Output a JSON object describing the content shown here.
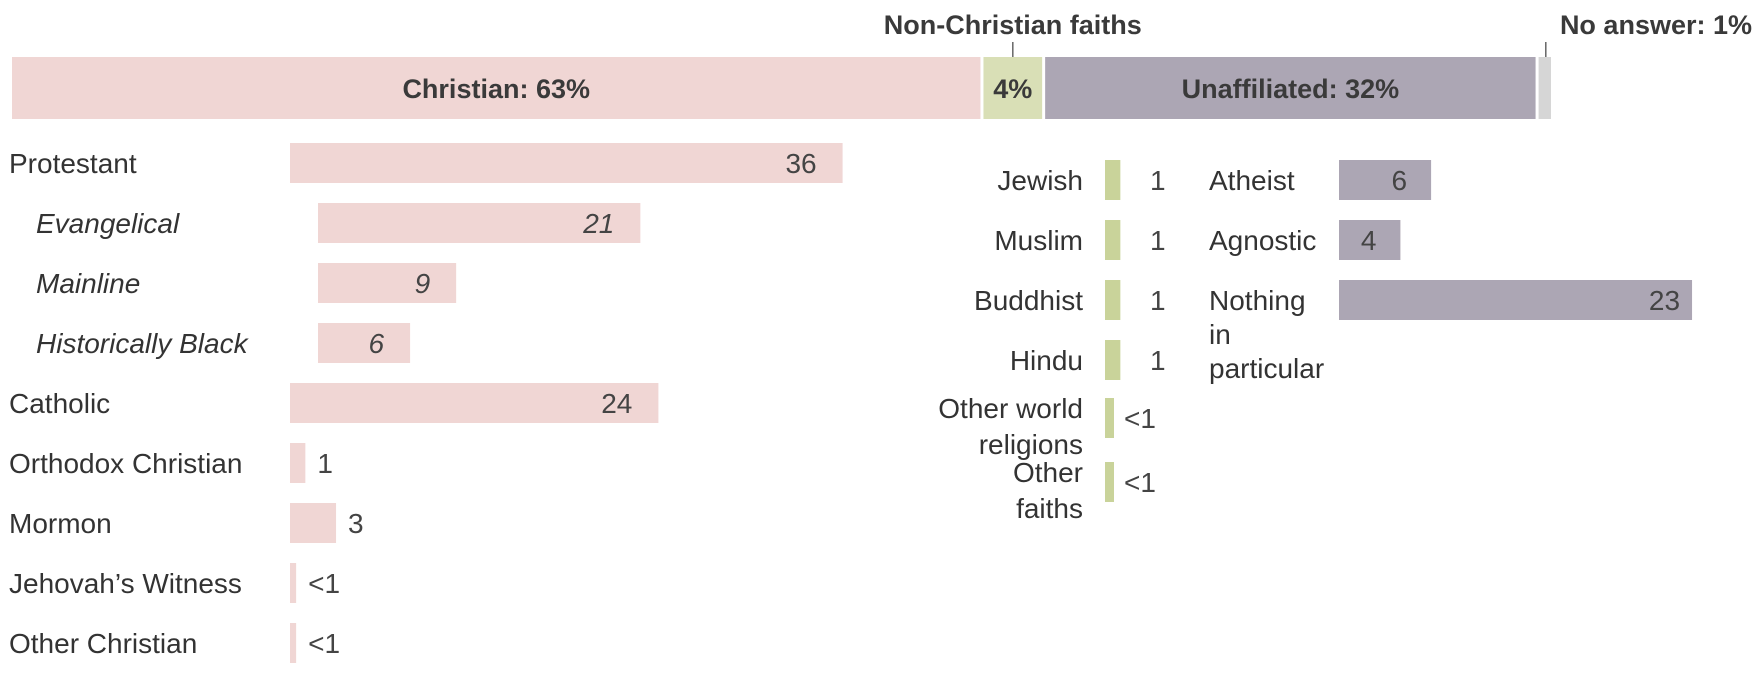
{
  "chart_data": {
    "type": "bar",
    "title": "",
    "summary": {
      "segments": [
        {
          "name": "Christian",
          "value": 63,
          "label": "Christian: 63%",
          "color": "#f0d6d4"
        },
        {
          "name": "Non-Christian faiths",
          "value": 4,
          "label": "4%",
          "color": "#d9dfb6"
        },
        {
          "name": "Unaffiliated",
          "value": 32,
          "label": "Unaffiliated: 32%",
          "color": "#aca6b4"
        },
        {
          "name": "No answer",
          "value": 1,
          "label": "",
          "color": "#d6d6d6"
        }
      ],
      "callouts": {
        "non_christian": "Non-Christian faiths",
        "no_answer": "No answer: 1%"
      }
    },
    "groups": [
      {
        "name": "Christian",
        "color": "#f0d6d4",
        "items": [
          {
            "label": "Protestant",
            "value": 36,
            "display": "36",
            "sub": false
          },
          {
            "label": "Evangelical",
            "value": 21,
            "display": "21",
            "sub": true
          },
          {
            "label": "Mainline",
            "value": 9,
            "display": "9",
            "sub": true
          },
          {
            "label": "Historically Black",
            "value": 6,
            "display": "6",
            "sub": true
          },
          {
            "label": "Catholic",
            "value": 24,
            "display": "24",
            "sub": false
          },
          {
            "label": "Orthodox Christian",
            "value": 1,
            "display": "1",
            "sub": false
          },
          {
            "label": "Mormon",
            "value": 3,
            "display": "3",
            "sub": false
          },
          {
            "label": "Jehovah’s Witness",
            "value": 0.4,
            "display": "<1",
            "sub": false
          },
          {
            "label": "Other Christian",
            "value": 0.4,
            "display": "<1",
            "sub": false
          }
        ]
      },
      {
        "name": "Non-Christian faiths",
        "color": "#c9d39a",
        "items": [
          {
            "label": "Jewish",
            "value": 1,
            "display": "1"
          },
          {
            "label": "Muslim",
            "value": 1,
            "display": "1"
          },
          {
            "label": "Buddhist",
            "value": 1,
            "display": "1"
          },
          {
            "label": "Hindu",
            "value": 1,
            "display": "1"
          },
          {
            "label": "Other world religions",
            "lines": [
              "Other world",
              "religions"
            ],
            "value": 0.5,
            "display": "<1"
          },
          {
            "label": "Other faiths",
            "lines": [
              "Other",
              "faiths"
            ],
            "value": 0.5,
            "display": "<1"
          }
        ]
      },
      {
        "name": "Unaffiliated",
        "color": "#aca6b4",
        "items": [
          {
            "label": "Atheist",
            "value": 6,
            "display": "6"
          },
          {
            "label": "Agnostic",
            "value": 4,
            "display": "4"
          },
          {
            "label": "Nothing in particular",
            "lines": [
              "Nothing",
              "in",
              "particular"
            ],
            "value": 23,
            "display": "23"
          }
        ]
      }
    ]
  }
}
